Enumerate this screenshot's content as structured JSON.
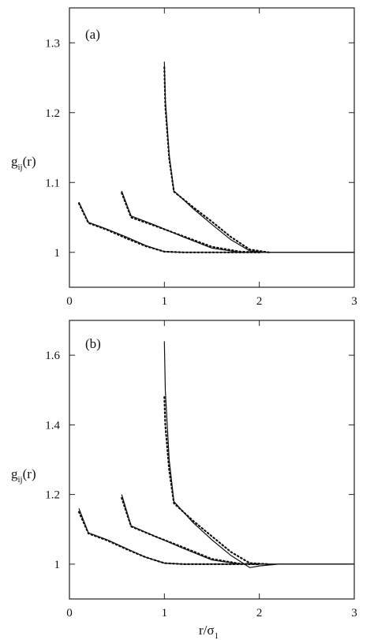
{
  "chart_data": [
    {
      "type": "line",
      "panel_label": "(a)",
      "ylabel": "g",
      "ylabel_sub": "ij",
      "ylabel_tail": "(r)",
      "xlabel": "",
      "xlim": [
        0,
        3
      ],
      "ylim": [
        0.95,
        1.35
      ],
      "xticks": [
        "0",
        "1",
        "2",
        "3"
      ],
      "yticks": [
        "1",
        "1.1",
        "1.2",
        "1.3"
      ],
      "ytick_values": [
        1.0,
        1.1,
        1.2,
        1.3
      ],
      "xtick_values": [
        0,
        1,
        2,
        3
      ],
      "series": [
        {
          "style": "solid",
          "x": [
            0.1,
            0.2,
            0.4,
            0.6,
            0.8,
            1.0,
            1.2,
            1.5,
            2.0,
            3.0
          ],
          "y": [
            1.072,
            1.043,
            1.033,
            1.022,
            1.01,
            1.001,
            1.0,
            1.0,
            1.0,
            1.0
          ]
        },
        {
          "style": "dotted",
          "x": [
            0.1,
            0.2,
            0.4,
            0.6,
            0.8,
            1.0,
            1.2,
            1.5,
            2.0
          ],
          "y": [
            1.07,
            1.042,
            1.032,
            1.02,
            1.009,
            1.001,
            1.0,
            1.0,
            1.0
          ]
        },
        {
          "style": "solid",
          "x": [
            0.55,
            0.65,
            0.9,
            1.2,
            1.5,
            1.8,
            2.0,
            3.0
          ],
          "y": [
            1.088,
            1.052,
            1.039,
            1.022,
            1.006,
            1.0,
            1.0,
            1.0
          ]
        },
        {
          "style": "dotted",
          "x": [
            0.55,
            0.65,
            0.9,
            1.2,
            1.5,
            1.8,
            2.0
          ],
          "y": [
            1.085,
            1.05,
            1.038,
            1.023,
            1.008,
            1.001,
            1.0
          ]
        },
        {
          "style": "solid",
          "x": [
            1.0,
            1.01,
            1.05,
            1.1,
            1.3,
            1.5,
            1.7,
            1.9,
            2.1,
            3.0
          ],
          "y": [
            1.273,
            1.22,
            1.14,
            1.088,
            1.063,
            1.04,
            1.018,
            1.002,
            1.0,
            1.0
          ]
        },
        {
          "style": "dotted",
          "x": [
            1.0,
            1.01,
            1.05,
            1.1,
            1.3,
            1.5,
            1.7,
            1.9,
            2.1
          ],
          "y": [
            1.265,
            1.21,
            1.135,
            1.087,
            1.065,
            1.044,
            1.022,
            1.004,
            1.0
          ]
        }
      ]
    },
    {
      "type": "line",
      "panel_label": "(b)",
      "ylabel": "g",
      "ylabel_sub": "ij",
      "ylabel_tail": "(r)",
      "xlabel": "r/σ",
      "xlabel_sub": "1",
      "xlim": [
        0,
        3
      ],
      "ylim": [
        0.9,
        1.7
      ],
      "xticks": [
        "0",
        "1",
        "2",
        "3"
      ],
      "yticks": [
        "1",
        "1.2",
        "1.4",
        "1.6"
      ],
      "ytick_values": [
        1.0,
        1.2,
        1.4,
        1.6
      ],
      "xtick_values": [
        0,
        1,
        2,
        3
      ],
      "series": [
        {
          "style": "solid",
          "x": [
            0.1,
            0.2,
            0.4,
            0.6,
            0.8,
            1.0,
            1.2,
            1.5,
            2.0,
            3.0
          ],
          "y": [
            1.16,
            1.09,
            1.07,
            1.045,
            1.02,
            1.003,
            1.0,
            1.0,
            1.0,
            1.0
          ]
        },
        {
          "style": "dotted",
          "x": [
            0.1,
            0.2,
            0.4,
            0.6,
            0.8,
            1.0,
            1.2,
            1.5,
            2.0
          ],
          "y": [
            1.15,
            1.088,
            1.068,
            1.043,
            1.02,
            1.003,
            1.0,
            1.0,
            1.0
          ]
        },
        {
          "style": "solid",
          "x": [
            0.55,
            0.65,
            0.9,
            1.2,
            1.5,
            1.8,
            2.0,
            3.0
          ],
          "y": [
            1.2,
            1.11,
            1.08,
            1.045,
            1.012,
            1.0,
            1.0,
            1.0
          ]
        },
        {
          "style": "dotted",
          "x": [
            0.55,
            0.65,
            0.9,
            1.2,
            1.5,
            1.8,
            2.0
          ],
          "y": [
            1.19,
            1.108,
            1.08,
            1.048,
            1.015,
            1.001,
            1.0
          ]
        },
        {
          "style": "solid",
          "x": [
            1.0,
            1.01,
            1.05,
            1.1,
            1.3,
            1.5,
            1.7,
            1.9,
            2.0,
            2.2,
            3.0
          ],
          "y": [
            1.64,
            1.5,
            1.3,
            1.18,
            1.12,
            1.07,
            1.025,
            0.99,
            0.995,
            1.0,
            1.0
          ]
        },
        {
          "style": "dotted",
          "x": [
            1.0,
            1.01,
            1.05,
            1.1,
            1.3,
            1.5,
            1.7,
            1.9,
            2.1
          ],
          "y": [
            1.48,
            1.4,
            1.27,
            1.175,
            1.125,
            1.08,
            1.035,
            1.003,
            1.0
          ]
        }
      ]
    }
  ]
}
